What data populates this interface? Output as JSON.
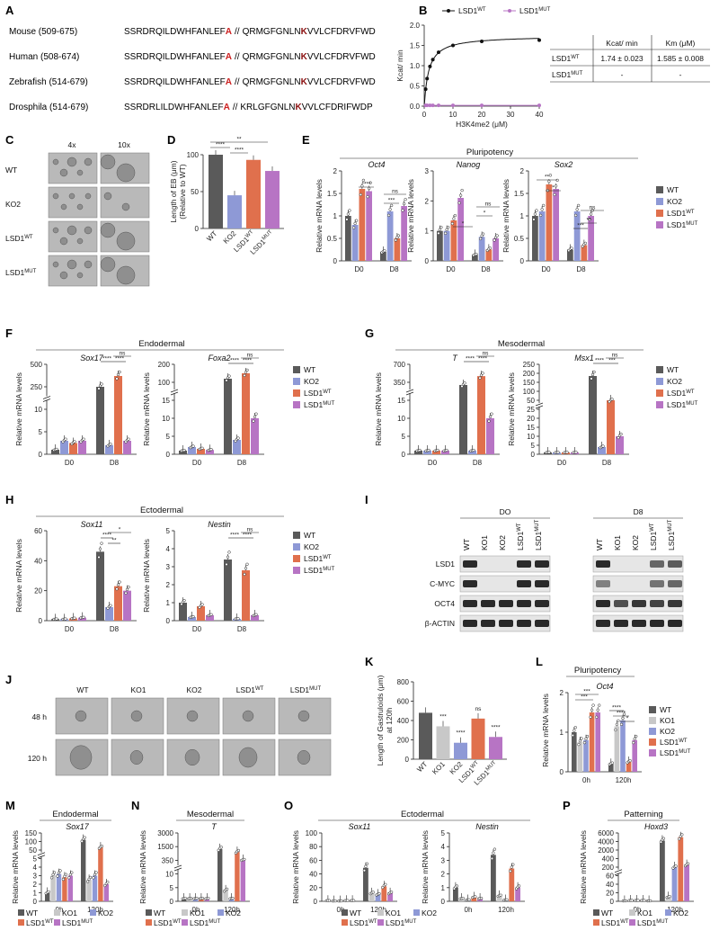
{
  "panels": {
    "A": "A",
    "B": "B",
    "C": "C",
    "D": "D",
    "E": "E",
    "F": "F",
    "G": "G",
    "H": "H",
    "I": "I",
    "J": "J",
    "K": "K",
    "L": "L",
    "M": "M",
    "N": "N",
    "O": "O",
    "P": "P"
  },
  "colors": {
    "WT": "#5a5a5a",
    "KO1": "#c8c8c8",
    "KO2": "#8e99d6",
    "LSD1WT": "#e0704d",
    "LSD1MUT": "#b774c4",
    "highlight_red": "#cc1e1e",
    "highlight_darkred": "#8b1010"
  },
  "legend": {
    "WT": "WT",
    "KO1": "KO1",
    "KO2": "KO2",
    "LSD1": "LSD1",
    "WT_sup": "WT",
    "MUT_sup": "MUT"
  },
  "panel_A": {
    "rows": [
      {
        "species": "Mouse (509-675)",
        "left": "SSRDRQILDWHFANLEF",
        "mutA": "A",
        "mid": "QRMGFGNLN",
        "mutK": "K",
        "right": "VVLCFDRVFWD"
      },
      {
        "species": "Human (508-674)",
        "left": "SSRDRQILDWHFANLEF",
        "mutA": "A",
        "mid": "QRMGFGNLN",
        "mutK": "K",
        "right": "VVLCFDRVFWD"
      },
      {
        "species": "Zebrafish (514-679)",
        "left": "SSRDRQILDWHFANLEF",
        "mutA": "A",
        "mid": "QRMGFGNLN",
        "mutK": "K",
        "right": "VVLCFDRVFWD"
      },
      {
        "species": "Drosphila (514-679)",
        "left": "SSRDRLILDWHFANLEF",
        "mutA": "A",
        "mid": "KRLGFGNLN",
        "mutK": "K",
        "right": "VVLCFDRIFWDP"
      }
    ],
    "break": "//"
  },
  "panel_B": {
    "ylabel": "Kcat/ min",
    "xlabel": "H3K4me2 (μM)",
    "xticks": [
      "0",
      "10",
      "20",
      "30",
      "40"
    ],
    "yticks": [
      "0.0",
      "0.5",
      "1.0",
      "1.5",
      "2.0"
    ],
    "table": {
      "headers": [
        "",
        "Kcat/ min",
        "Km (μM)"
      ],
      "rows": [
        {
          "label": "LSD1",
          "sup": "WT",
          "kcat": "1.74 ± 0.023",
          "km": "1.585 ± 0.008"
        },
        {
          "label": "LSD1",
          "sup": "MUT",
          "kcat": "-",
          "km": "-"
        }
      ]
    }
  },
  "panel_C": {
    "cols": [
      "4x",
      "10x"
    ],
    "rows": [
      "WT",
      "KO2",
      "LSD1",
      "LSD1"
    ],
    "sups": [
      "",
      "",
      "WT",
      "MUT"
    ]
  },
  "panel_D": {
    "ylabel1": "Length of EB (μm)",
    "ylabel2": "(Relative to WT)",
    "yticks": [
      "0",
      "50",
      "100"
    ],
    "groups": [
      "WT",
      "KO2",
      "LSD1",
      "LSD1"
    ],
    "sups": [
      "",
      "",
      "WT",
      "MUT"
    ],
    "sig": [
      "****",
      "****",
      "**"
    ]
  },
  "panel_E": {
    "title": "Pluripotency",
    "ylabel": "Relative mRNA levels",
    "genes": [
      "Oct4",
      "Nanog",
      "Sox2"
    ],
    "xcats": [
      "D0",
      "D8"
    ]
  },
  "panel_F": {
    "title": "Endodermal",
    "ylabel": "Relative mRNA levels",
    "genes": [
      "Sox17",
      "Foxa2"
    ],
    "xcats": [
      "D0",
      "D8"
    ]
  },
  "panel_G": {
    "title": "Mesodermal",
    "ylabel": "Relative mRNA levels",
    "genes": [
      "T",
      "Msx1"
    ],
    "xcats": [
      "D0",
      "D8"
    ]
  },
  "panel_H": {
    "title": "Ectodermal",
    "ylabel": "Relative mRNA levels",
    "genes": [
      "Sox11",
      "Nestin"
    ],
    "xcats": [
      "D0",
      "D8"
    ]
  },
  "panel_I": {
    "timepoints": [
      "DO",
      "D8"
    ],
    "lanes": [
      "WT",
      "KO1",
      "KO2",
      "LSD1",
      "LSD1"
    ],
    "lane_sups": [
      "",
      "",
      "",
      "WT",
      "MUT"
    ],
    "proteins": [
      "LSD1",
      "C-MYC",
      "OCT4",
      "β-ACTIN"
    ]
  },
  "panel_J": {
    "cols": [
      "WT",
      "KO1",
      "KO2",
      "LSD1",
      "LSD1"
    ],
    "sups": [
      "",
      "",
      "",
      "WT",
      "MUT"
    ],
    "rows": [
      "48 h",
      "120 h"
    ]
  },
  "panel_K": {
    "ylabel1": "Length of Gastruloids  (μm)",
    "ylabel2": "at 120h",
    "yticks": [
      "0",
      "200",
      "400",
      "600",
      "800"
    ],
    "groups": [
      "WT",
      "KO1",
      "KO2",
      "LSD1",
      "LSD1"
    ],
    "sups": [
      "",
      "",
      "",
      "WT",
      "MUT"
    ],
    "sig": [
      "***",
      "****",
      "ns",
      "****"
    ]
  },
  "panel_L": {
    "title": "Pluripotency",
    "gene": "Oct4",
    "ylabel": "Relative mRNA levels",
    "yticks": [
      "0",
      "1",
      "2"
    ],
    "xcats": [
      "0h",
      "120h"
    ]
  },
  "panel_M": {
    "title": "Endodermal",
    "gene": "Sox17",
    "ylabel": "Relative mRNA levels",
    "xcats": [
      "0h",
      "120h"
    ]
  },
  "panel_N": {
    "title": "Mesodermal",
    "gene": "T",
    "ylabel": "Relative mRNA levels",
    "xcats": [
      "0h",
      "120h"
    ]
  },
  "panel_O": {
    "title": "Ectodermal",
    "genes": [
      "Sox11",
      "Nestin"
    ],
    "ylabel": "Relative mRNA levels",
    "xcats": [
      "0h",
      "120h"
    ]
  },
  "panel_P": {
    "title": "Patterning",
    "gene": "Hoxd3",
    "ylabel": "Relative mRNA levels",
    "xcats": [
      "0h",
      "120h"
    ]
  },
  "chart_data": [
    {
      "panel": "B",
      "type": "line",
      "xlabel": "H3K4me2 (μM)",
      "ylabel": "Kcat/ min",
      "xlim": [
        0,
        40
      ],
      "ylim": [
        0,
        2
      ],
      "series": [
        {
          "name": "LSD1WT",
          "x": [
            0.5,
            1,
            2,
            3,
            5,
            10,
            20,
            40
          ],
          "y": [
            0.42,
            0.68,
            0.98,
            1.15,
            1.33,
            1.5,
            1.6,
            1.63
          ]
        },
        {
          "name": "LSD1MUT",
          "x": [
            0.5,
            1,
            2,
            3,
            5,
            10,
            20,
            40
          ],
          "y": [
            0.02,
            0.02,
            0.02,
            0.02,
            0.02,
            0.02,
            0.02,
            0.02
          ]
        }
      ]
    },
    {
      "panel": "D",
      "type": "bar",
      "categories": [
        "WT",
        "KO2",
        "LSD1WT",
        "LSD1MUT"
      ],
      "values": [
        100,
        45,
        93,
        78
      ],
      "ylim": [
        0,
        100
      ]
    },
    {
      "panel": "E-Oct4",
      "type": "bar",
      "categories": [
        "D0",
        "D8"
      ],
      "ylim": [
        0,
        2.0
      ],
      "yticks": [
        0,
        0.5,
        1.0,
        1.5,
        2.0
      ],
      "series": [
        {
          "name": "WT",
          "values": [
            1.0,
            0.2
          ]
        },
        {
          "name": "KO2",
          "values": [
            0.8,
            1.1
          ]
        },
        {
          "name": "LSD1WT",
          "values": [
            1.6,
            0.5
          ]
        },
        {
          "name": "LSD1MUT",
          "values": [
            1.55,
            1.22
          ]
        }
      ]
    },
    {
      "panel": "E-Nanog",
      "type": "bar",
      "categories": [
        "D0",
        "D8"
      ],
      "ylim": [
        0,
        3
      ],
      "yticks": [
        0,
        1,
        2,
        3
      ],
      "series": [
        {
          "name": "WT",
          "values": [
            1.0,
            0.2
          ]
        },
        {
          "name": "KO2",
          "values": [
            1.0,
            0.8
          ]
        },
        {
          "name": "LSD1WT",
          "values": [
            1.35,
            0.38
          ]
        },
        {
          "name": "LSD1MUT",
          "values": [
            2.1,
            0.75
          ]
        }
      ]
    },
    {
      "panel": "E-Sox2",
      "type": "bar",
      "categories": [
        "D0",
        "D8"
      ],
      "ylim": [
        0,
        2.0
      ],
      "yticks": [
        0,
        0.5,
        1.0,
        1.5,
        2.0
      ],
      "series": [
        {
          "name": "WT",
          "values": [
            1.0,
            0.25
          ]
        },
        {
          "name": "KO2",
          "values": [
            1.1,
            1.1
          ]
        },
        {
          "name": "LSD1WT",
          "values": [
            1.7,
            0.35
          ]
        },
        {
          "name": "LSD1MUT",
          "values": [
            1.6,
            1.0
          ]
        }
      ]
    },
    {
      "panel": "F-Sox17",
      "type": "bar",
      "categories": [
        "D0",
        "D8"
      ],
      "ylim": [
        0,
        500
      ],
      "yticks": [
        0,
        5,
        10,
        250,
        500
      ],
      "series": [
        {
          "name": "WT",
          "values": [
            1,
            250
          ]
        },
        {
          "name": "KO2",
          "values": [
            3,
            2
          ]
        },
        {
          "name": "LSD1WT",
          "values": [
            2.5,
            370
          ]
        },
        {
          "name": "LSD1MUT",
          "values": [
            3,
            3
          ]
        }
      ]
    },
    {
      "panel": "F-Foxa2",
      "type": "bar",
      "categories": [
        "D0",
        "D8"
      ],
      "ylim": [
        0,
        200
      ],
      "yticks": [
        0,
        5,
        10,
        15,
        100,
        200
      ],
      "series": [
        {
          "name": "WT",
          "values": [
            1,
            120
          ]
        },
        {
          "name": "KO2",
          "values": [
            2,
            4
          ]
        },
        {
          "name": "LSD1WT",
          "values": [
            1.5,
            150
          ]
        },
        {
          "name": "LSD1MUT",
          "values": [
            1.2,
            10
          ]
        }
      ]
    },
    {
      "panel": "G-T",
      "type": "bar",
      "categories": [
        "D0",
        "D8"
      ],
      "ylim": [
        0,
        700
      ],
      "yticks": [
        0,
        5,
        10,
        15,
        350,
        700
      ],
      "series": [
        {
          "name": "WT",
          "values": [
            1,
            300
          ]
        },
        {
          "name": "KO2",
          "values": [
            1,
            1
          ]
        },
        {
          "name": "LSD1WT",
          "values": [
            1,
            470
          ]
        },
        {
          "name": "LSD1MUT",
          "values": [
            1,
            10
          ]
        }
      ]
    },
    {
      "panel": "G-Msx1",
      "type": "bar",
      "categories": [
        "D0",
        "D8"
      ],
      "ylim": [
        0,
        250
      ],
      "yticks": [
        0,
        5,
        10,
        15,
        20,
        25,
        50,
        100,
        150,
        200,
        250
      ],
      "series": [
        {
          "name": "WT",
          "values": [
            1,
            185
          ]
        },
        {
          "name": "KO2",
          "values": [
            1,
            4
          ]
        },
        {
          "name": "LSD1WT",
          "values": [
            1,
            50
          ]
        },
        {
          "name": "LSD1MUT",
          "values": [
            1,
            10
          ]
        }
      ]
    },
    {
      "panel": "H-Sox11",
      "type": "bar",
      "categories": [
        "D0",
        "D8"
      ],
      "ylim": [
        0,
        60
      ],
      "yticks": [
        0,
        20,
        40,
        60
      ],
      "series": [
        {
          "name": "WT",
          "values": [
            1,
            46
          ]
        },
        {
          "name": "KO2",
          "values": [
            1,
            9
          ]
        },
        {
          "name": "LSD1WT",
          "values": [
            1.5,
            23
          ]
        },
        {
          "name": "LSD1MUT",
          "values": [
            2,
            20
          ]
        }
      ]
    },
    {
      "panel": "H-Nestin",
      "type": "bar",
      "categories": [
        "D0",
        "D8"
      ],
      "ylim": [
        0,
        5
      ],
      "yticks": [
        0,
        1,
        2,
        3,
        4,
        5
      ],
      "series": [
        {
          "name": "WT",
          "values": [
            1,
            3.4
          ]
        },
        {
          "name": "KO2",
          "values": [
            0.2,
            0.1
          ]
        },
        {
          "name": "LSD1WT",
          "values": [
            0.8,
            2.8
          ]
        },
        {
          "name": "LSD1MUT",
          "values": [
            0.3,
            0.3
          ]
        }
      ]
    },
    {
      "panel": "K",
      "type": "bar",
      "categories": [
        "WT",
        "KO1",
        "KO2",
        "LSD1WT",
        "LSD1MUT"
      ],
      "values": [
        480,
        340,
        170,
        420,
        230
      ],
      "ylim": [
        0,
        800
      ]
    },
    {
      "panel": "L",
      "type": "bar",
      "categories": [
        "0h",
        "120h"
      ],
      "ylim": [
        0,
        2
      ],
      "series": [
        {
          "name": "WT",
          "values": [
            1.0,
            0.2
          ]
        },
        {
          "name": "KO1",
          "values": [
            0.75,
            1.15
          ]
        },
        {
          "name": "KO2",
          "values": [
            0.8,
            1.3
          ]
        },
        {
          "name": "LSD1WT",
          "values": [
            1.5,
            0.25
          ]
        },
        {
          "name": "LSD1MUT",
          "values": [
            1.5,
            0.8
          ]
        }
      ]
    },
    {
      "panel": "M",
      "type": "bar",
      "categories": [
        "0h",
        "120h"
      ],
      "ylim": [
        0,
        150
      ],
      "yticks": [
        0,
        1,
        2,
        3,
        4,
        5,
        50,
        100,
        150
      ],
      "series": [
        {
          "name": "WT",
          "values": [
            1,
            110
          ]
        },
        {
          "name": "KO1",
          "values": [
            3,
            2.5
          ]
        },
        {
          "name": "KO2",
          "values": [
            3.2,
            3
          ]
        },
        {
          "name": "LSD1WT",
          "values": [
            2.8,
            65
          ]
        },
        {
          "name": "LSD1MUT",
          "values": [
            3,
            2
          ]
        }
      ]
    },
    {
      "panel": "N",
      "type": "bar",
      "categories": [
        "0h",
        "120h"
      ],
      "ylim": [
        0,
        3000
      ],
      "yticks": [
        0,
        5,
        10,
        350,
        1500,
        3000
      ],
      "series": [
        {
          "name": "WT",
          "values": [
            1,
            1300
          ]
        },
        {
          "name": "KO1",
          "values": [
            1,
            4
          ]
        },
        {
          "name": "KO2",
          "values": [
            1,
            1
          ]
        },
        {
          "name": "LSD1WT",
          "values": [
            1,
            1050
          ]
        },
        {
          "name": "LSD1MUT",
          "values": [
            1,
            380
          ]
        }
      ]
    },
    {
      "panel": "O-Sox11",
      "type": "bar",
      "categories": [
        "0h",
        "120h"
      ],
      "ylim": [
        0,
        100
      ],
      "yticks": [
        0,
        20,
        40,
        60,
        80,
        100
      ],
      "series": [
        {
          "name": "WT",
          "values": [
            1,
            49
          ]
        },
        {
          "name": "KO1",
          "values": [
            0.5,
            12
          ]
        },
        {
          "name": "KO2",
          "values": [
            0.5,
            10
          ]
        },
        {
          "name": "LSD1WT",
          "values": [
            1,
            22
          ]
        },
        {
          "name": "LSD1MUT",
          "values": [
            1,
            12
          ]
        }
      ]
    },
    {
      "panel": "O-Nestin",
      "type": "bar",
      "categories": [
        "0h",
        "120h"
      ],
      "ylim": [
        0,
        5
      ],
      "yticks": [
        0,
        1,
        2,
        3,
        4,
        5
      ],
      "series": [
        {
          "name": "WT",
          "values": [
            1,
            3.4
          ]
        },
        {
          "name": "KO1",
          "values": [
            0.2,
            0.4
          ]
        },
        {
          "name": "KO2",
          "values": [
            0.1,
            0.1
          ]
        },
        {
          "name": "LSD1WT",
          "values": [
            0.3,
            2.4
          ]
        },
        {
          "name": "LSD1MUT",
          "values": [
            0.2,
            1.0
          ]
        }
      ]
    },
    {
      "panel": "P",
      "type": "bar",
      "categories": [
        "0h",
        "120h"
      ],
      "ylim": [
        0,
        6000
      ],
      "yticks": [
        0,
        20,
        40,
        60,
        200,
        400,
        2000,
        4000,
        6000
      ],
      "series": [
        {
          "name": "WT",
          "values": [
            1,
            4200
          ]
        },
        {
          "name": "KO1",
          "values": [
            2,
            10
          ]
        },
        {
          "name": "KO2",
          "values": [
            2,
            200
          ]
        },
        {
          "name": "LSD1WT",
          "values": [
            2,
            5000
          ]
        },
        {
          "name": "LSD1MUT",
          "values": [
            1,
            250
          ]
        }
      ]
    }
  ]
}
